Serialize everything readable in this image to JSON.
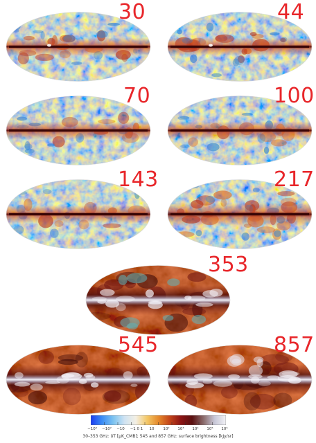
{
  "maps": [
    {
      "label": "30",
      "style": "cmb",
      "plane": "red"
    },
    {
      "label": "44",
      "style": "cmb",
      "plane": "red"
    },
    {
      "label": "70",
      "style": "cmb",
      "plane": "red"
    },
    {
      "label": "100",
      "style": "cmb",
      "plane": "red"
    },
    {
      "label": "143",
      "style": "cmb",
      "plane": "red"
    },
    {
      "label": "217",
      "style": "cmb",
      "plane": "red"
    },
    {
      "label": "353",
      "style": "dust",
      "plane": "white"
    },
    {
      "label": "545",
      "style": "dust",
      "plane": "white"
    },
    {
      "label": "857",
      "style": "dust",
      "plane": "white"
    }
  ],
  "colorbar": {
    "ticks": [
      "−10³",
      "−10²",
      "−10",
      "−1 0 1",
      "10",
      "10²",
      "10³",
      "10⁴",
      "10⁵",
      "10⁶"
    ],
    "caption": "30–353 GHz: δT [μK_CMB]; 545 and 857 GHz: surface brightness [kJy/sr]",
    "colors": [
      "#1a3cf0",
      "#3a8cf5",
      "#7cc3f0",
      "#cfe3f2",
      "#f3efe4",
      "#f3c766",
      "#e58a2c",
      "#c4461a",
      "#8c1414",
      "#5a1010",
      "#8a6a6a",
      "#c8c8d8",
      "#f2f2f6"
    ]
  },
  "colors": {
    "label_red": "#e8262a"
  }
}
